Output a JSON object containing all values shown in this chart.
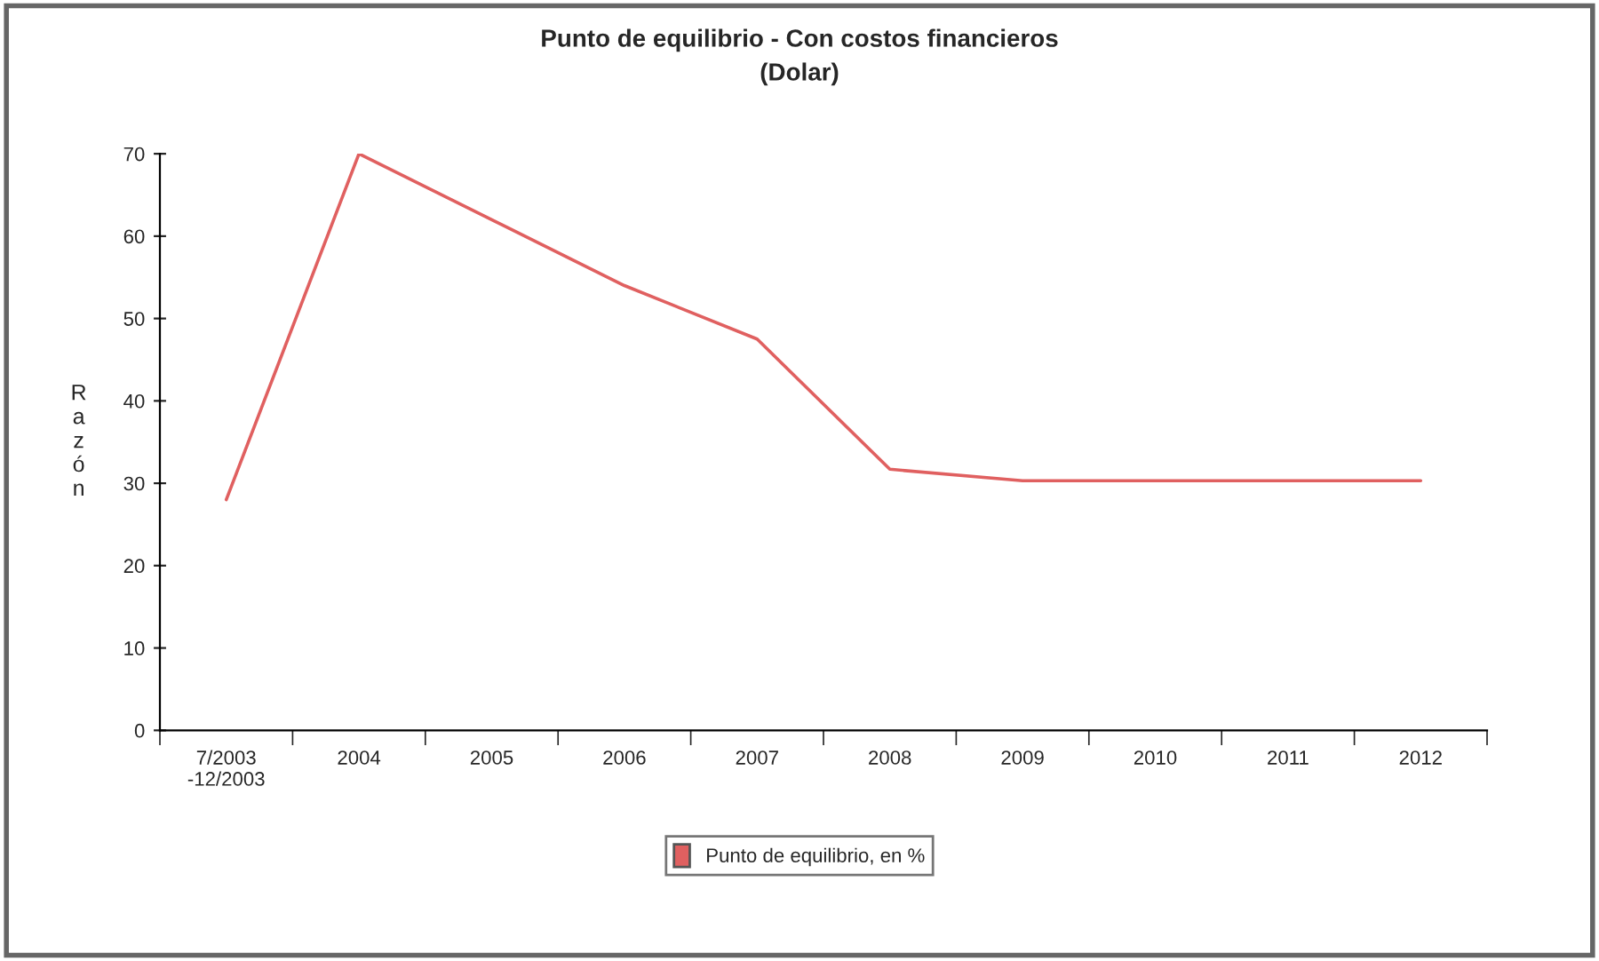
{
  "chart_data": {
    "type": "line",
    "title": "Punto de equilibrio - Con costos financieros\n(Dolar)",
    "ylabel": "Razón",
    "categories": [
      "7/2003\n-12/2003",
      "2004",
      "2005",
      "2006",
      "2007",
      "2008",
      "2009",
      "2010",
      "2011",
      "2012"
    ],
    "series": [
      {
        "name": "Punto de equilibrio, en %",
        "color": "#e06060",
        "values": [
          28,
          70,
          62,
          54,
          47.5,
          31.7,
          30.3,
          30.3,
          30.3,
          30.3
        ]
      }
    ],
    "ylim": [
      0,
      70
    ],
    "yticks": [
      0,
      10,
      20,
      30,
      40,
      50,
      60,
      70
    ],
    "grid": false,
    "legend": "bottom",
    "marker": "none",
    "line_style": "solid"
  }
}
